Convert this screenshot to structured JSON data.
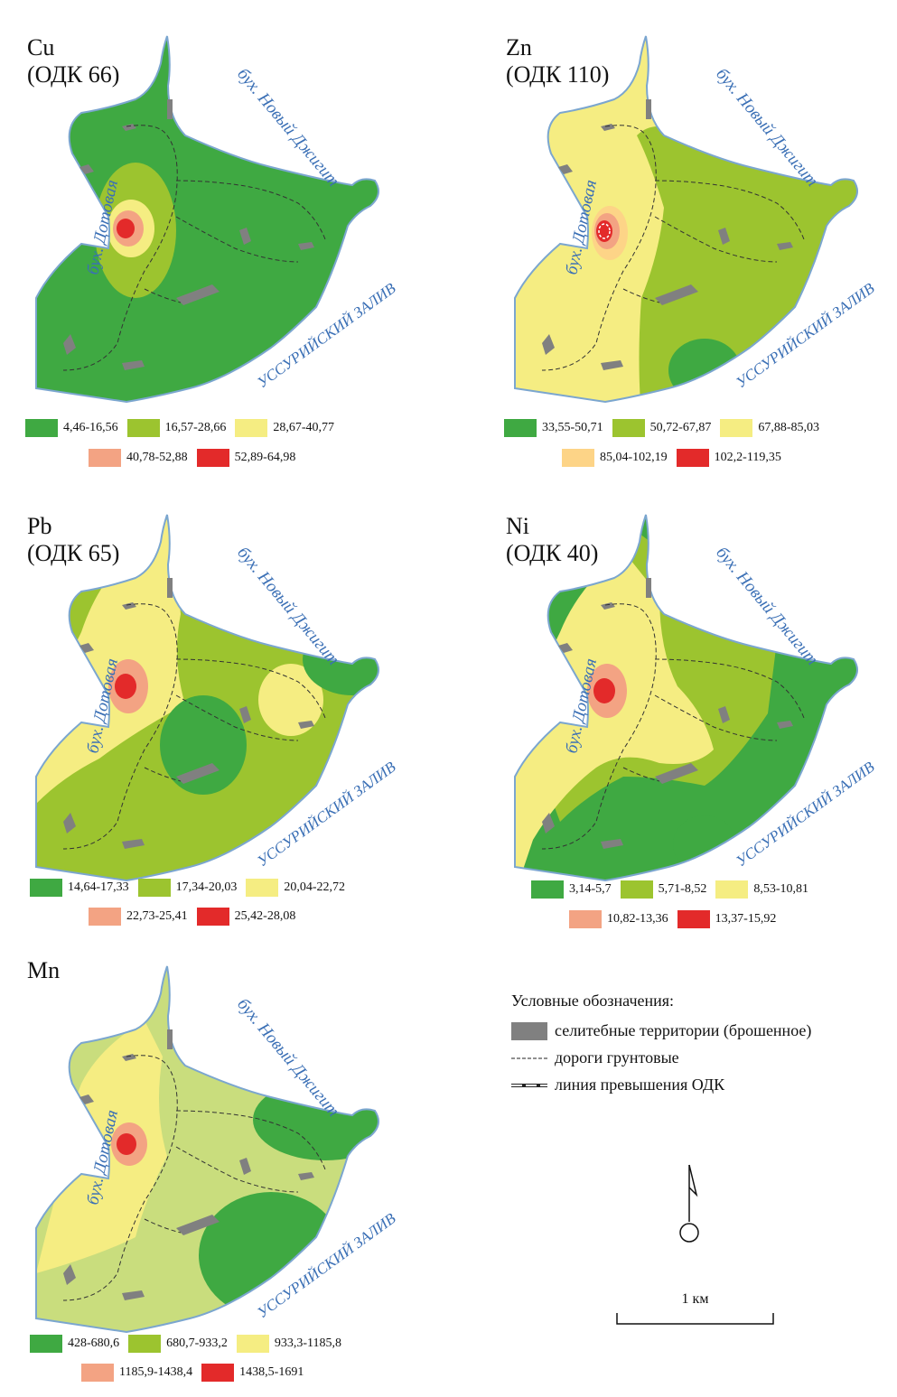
{
  "colors": {
    "dark_green": "#3fa942",
    "light_green": "#9cc42f",
    "pale_yellow": "#f5ed82",
    "salmon": "#f3a383",
    "peach": "#fdd487",
    "red": "#e32a2a",
    "mn_green": "#c9dd7d",
    "settlement": "#808080",
    "water_label": "#3a6fb5"
  },
  "labels": {
    "bay_left": "бух. Дотовая",
    "bay_right": "бух. Новый Джигит",
    "gulf": "УССУРИЙСКИЙ ЗАЛИВ"
  },
  "panels": [
    {
      "id": "cu",
      "element": "Cu",
      "odk": "(ОДК 66)",
      "legend": [
        {
          "label": "4,46-16,56",
          "color": "#3fa942"
        },
        {
          "label": "16,57-28,66",
          "color": "#9cc42f"
        },
        {
          "label": "28,67-40,77",
          "color": "#f5ed82"
        },
        {
          "label": "40,78-52,88",
          "color": "#f3a383"
        },
        {
          "label": "52,89-64,98",
          "color": "#e32a2a"
        }
      ]
    },
    {
      "id": "zn",
      "element": "Zn",
      "odk": "(ОДК 110)",
      "legend": [
        {
          "label": "33,55-50,71",
          "color": "#3fa942"
        },
        {
          "label": "50,72-67,87",
          "color": "#9cc42f"
        },
        {
          "label": "67,88-85,03",
          "color": "#f5ed82"
        },
        {
          "label": "85,04-102,19",
          "color": "#fdd487"
        },
        {
          "label": "102,2-119,35",
          "color": "#e32a2a"
        }
      ]
    },
    {
      "id": "pb",
      "element": "Pb",
      "odk": "(ОДК 65)",
      "legend": [
        {
          "label": "14,64-17,33",
          "color": "#3fa942"
        },
        {
          "label": "17,34-20,03",
          "color": "#9cc42f"
        },
        {
          "label": "20,04-22,72",
          "color": "#f5ed82"
        },
        {
          "label": "22,73-25,41",
          "color": "#f3a383"
        },
        {
          "label": "25,42-28,08",
          "color": "#e32a2a"
        }
      ]
    },
    {
      "id": "ni",
      "element": "Ni",
      "odk": "(ОДК 40)",
      "legend": [
        {
          "label": "3,14-5,7",
          "color": "#3fa942"
        },
        {
          "label": "5,71-8,52",
          "color": "#9cc42f"
        },
        {
          "label": "8,53-10,81",
          "color": "#f5ed82"
        },
        {
          "label": "10,82-13,36",
          "color": "#f3a383"
        },
        {
          "label": "13,37-15,92",
          "color": "#e32a2a"
        }
      ]
    },
    {
      "id": "mn",
      "element": "Mn",
      "odk": "",
      "legend": [
        {
          "label": "428-680,6",
          "color": "#3fa942"
        },
        {
          "label": "680,7-933,2",
          "color": "#9cc42f"
        },
        {
          "label": "933,3-1185,8",
          "color": "#f5ed82"
        },
        {
          "label": "1185,9-1438,4",
          "color": "#f3a383"
        },
        {
          "label": "1438,5-1691",
          "color": "#e32a2a"
        }
      ]
    }
  ],
  "key": {
    "title": "Условные обозначения:",
    "settlements": "селитебные территории (брошенное)",
    "roads": "дороги грунтовые",
    "odk_line": "линия превышения ОДК"
  },
  "scale_label": "1 км"
}
